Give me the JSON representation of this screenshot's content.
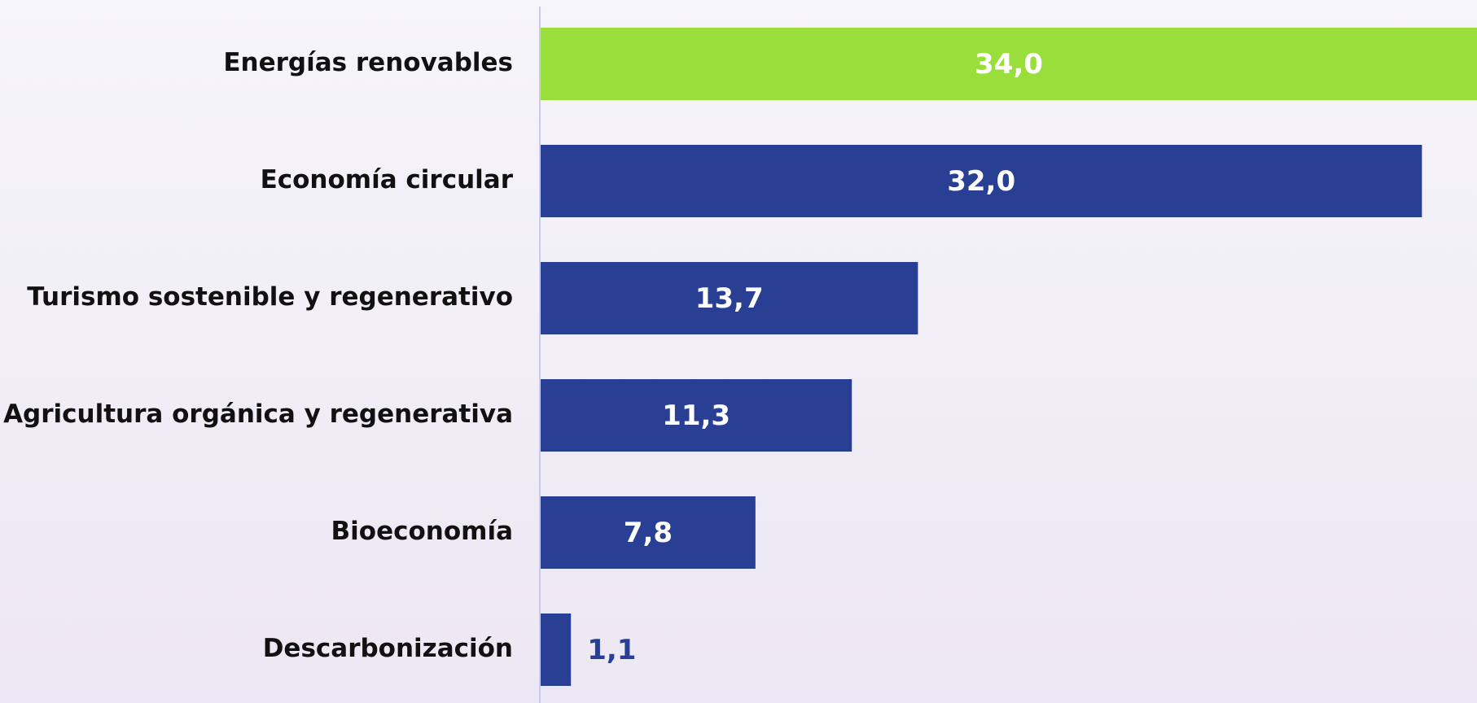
{
  "chart_data": {
    "type": "bar",
    "orientation": "horizontal",
    "categories": [
      "Energías renovables",
      "Economía circular",
      "Turismo sostenible y regenerativo",
      "Agricultura orgánica y regenerativa",
      "Bioeconomía",
      "Descarbonización"
    ],
    "values": [
      34.0,
      32.0,
      13.7,
      11.3,
      7.8,
      1.1
    ],
    "value_labels": [
      "34,0",
      "32,0",
      "13,7",
      "11,3",
      "7,8",
      "1,1"
    ],
    "colors": [
      "#9ade3b",
      "#283f94",
      "#283f94",
      "#283f94",
      "#283f94",
      "#283f94"
    ]
  }
}
